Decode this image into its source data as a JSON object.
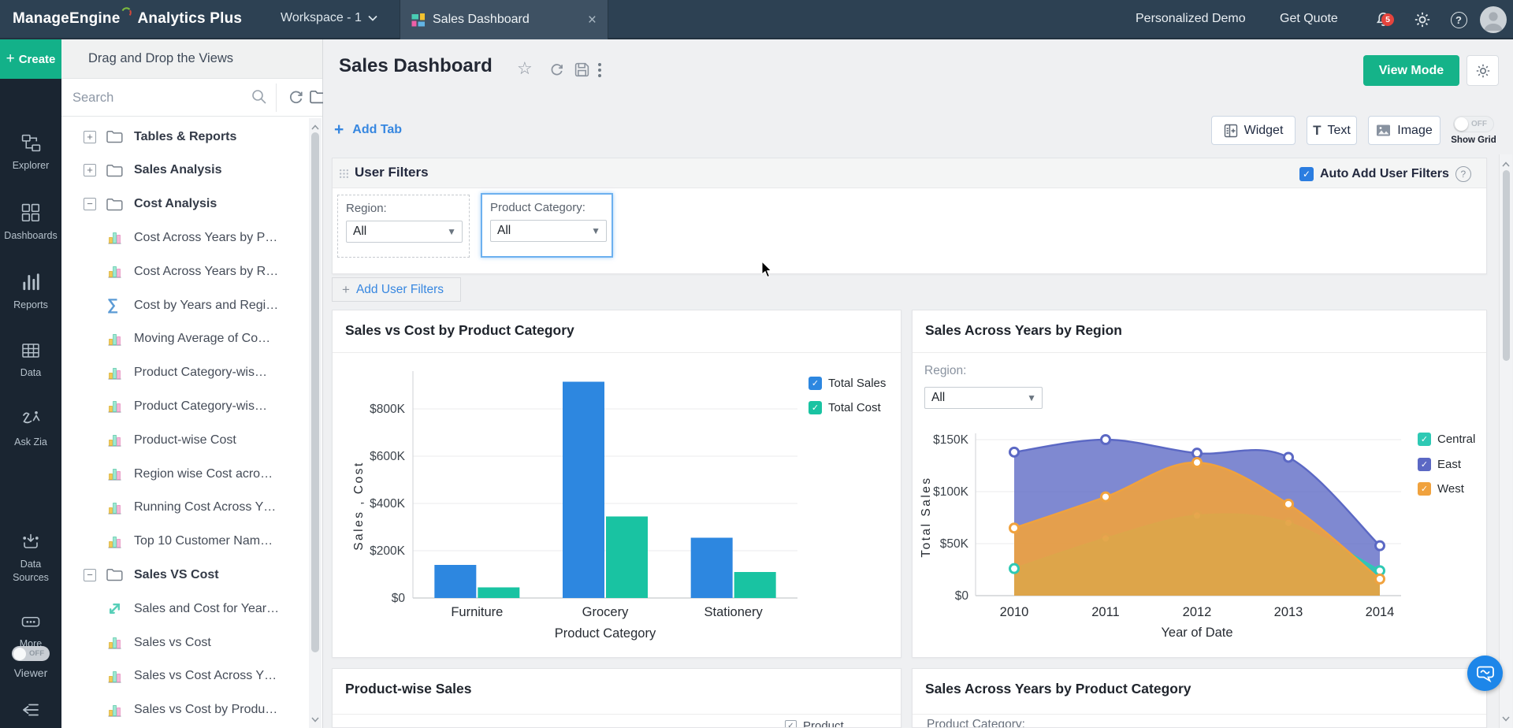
{
  "topbar": {
    "brand_bold": "ManageEngine",
    "brand_light": "Analytics Plus",
    "workspace_label": "Workspace - 1",
    "tab_title": "Sales Dashboard",
    "link_demo": "Personalized Demo",
    "link_quote": "Get Quote",
    "notification_count": "5"
  },
  "rail": {
    "create_label": "Create",
    "items": [
      {
        "label": "Explorer"
      },
      {
        "label": "Dashboards"
      },
      {
        "label": "Reports"
      },
      {
        "label": "Data"
      },
      {
        "label": "Ask Zia"
      },
      {
        "label": "Data Sources"
      },
      {
        "label": "More"
      }
    ],
    "viewer_label": "Viewer",
    "viewer_state": "OFF"
  },
  "tree": {
    "header": "Drag and Drop the Views",
    "search_placeholder": "Search",
    "nodes": [
      {
        "type": "folder",
        "state": "collapsed",
        "label": "Tables & Reports"
      },
      {
        "type": "folder",
        "state": "collapsed",
        "label": "Sales Analysis"
      },
      {
        "type": "folder",
        "state": "expanded",
        "label": "Cost Analysis"
      },
      {
        "type": "view",
        "icon": "bar-chart",
        "label": "Cost Across Years by P…"
      },
      {
        "type": "view",
        "icon": "bar-chart",
        "label": "Cost Across Years by R…"
      },
      {
        "type": "view",
        "icon": "summary",
        "label": "Cost by Years and Regi…"
      },
      {
        "type": "view",
        "icon": "bar-chart",
        "label": "Moving Average of Co…"
      },
      {
        "type": "view",
        "icon": "bar-chart",
        "label": "Product Category-wis…"
      },
      {
        "type": "view",
        "icon": "bar-chart",
        "label": "Product Category-wis…"
      },
      {
        "type": "view",
        "icon": "bar-chart",
        "label": "Product-wise Cost"
      },
      {
        "type": "view",
        "icon": "bar-chart",
        "label": "Region wise Cost acro…"
      },
      {
        "type": "view",
        "icon": "bar-chart",
        "label": "Running Cost Across Y…"
      },
      {
        "type": "view",
        "icon": "bar-chart",
        "label": "Top 10 Customer Nam…"
      },
      {
        "type": "folder",
        "state": "expanded",
        "label": "Sales VS Cost"
      },
      {
        "type": "view",
        "icon": "trend",
        "label": "Sales and Cost for Year…"
      },
      {
        "type": "view",
        "icon": "bar-chart",
        "label": "Sales vs Cost"
      },
      {
        "type": "view",
        "icon": "bar-chart",
        "label": "Sales vs Cost Across Y…"
      },
      {
        "type": "view",
        "icon": "bar-chart",
        "label": "Sales vs Cost by Produ…"
      }
    ]
  },
  "header": {
    "title": "Sales Dashboard",
    "add_tab_label": "Add Tab",
    "view_mode_label": "View Mode",
    "widget_label": "Widget",
    "text_label": "Text",
    "image_label": "Image",
    "show_grid_label": "Show Grid",
    "show_grid_state": "OFF"
  },
  "user_filters": {
    "title": "User Filters",
    "auto_add_label": "Auto Add User Filters",
    "add_filters_label": "Add User Filters",
    "filters": [
      {
        "label": "Region:",
        "value": "All",
        "highlighted": false
      },
      {
        "label": "Product Category:",
        "value": "All",
        "highlighted": true
      }
    ]
  },
  "bottom_cards": [
    {
      "title": "Product-wise Sales",
      "partial_legend": "Product"
    },
    {
      "title": "Sales Across Years by Product Category",
      "partial_filter_label": "Product Category:"
    }
  ],
  "chart_data": [
    {
      "type": "bar",
      "title": "Sales vs Cost by Product Category",
      "categories": [
        "Furniture",
        "Grocery",
        "Stationery"
      ],
      "series": [
        {
          "name": "Total Sales",
          "color": "#2d87e0",
          "values": [
            140000,
            915000,
            255000
          ]
        },
        {
          "name": "Total Cost",
          "color": "#19c3a2",
          "values": [
            45000,
            345000,
            110000
          ]
        }
      ],
      "xlabel": "Product Category",
      "ylabel": "Sales , Cost",
      "yticks": [
        0,
        200000,
        400000,
        600000,
        800000
      ],
      "ytick_labels": [
        "$0",
        "$200K",
        "$400K",
        "$600K",
        "$800K"
      ],
      "ylim": [
        0,
        950000
      ],
      "grid": true,
      "legend_position": "top-right"
    },
    {
      "type": "area",
      "title": "Sales Across Years by Region",
      "filter": {
        "label": "Region:",
        "value": "All"
      },
      "x": [
        "2010",
        "2011",
        "2012",
        "2013",
        "2014"
      ],
      "series": [
        {
          "name": "East",
          "color": "#5b68c4",
          "values": [
            138000,
            150000,
            137000,
            133000,
            48000
          ]
        },
        {
          "name": "Central",
          "color": "#2ec9b4",
          "values": [
            26000,
            55000,
            77000,
            70000,
            24000
          ]
        },
        {
          "name": "West",
          "color": "#f0a23e",
          "values": [
            65000,
            95000,
            128000,
            88000,
            16000
          ]
        }
      ],
      "legend_order": [
        "Central",
        "East",
        "West"
      ],
      "xlabel": "Year of Date",
      "ylabel": "Total Sales",
      "yticks": [
        0,
        50000,
        100000,
        150000
      ],
      "ytick_labels": [
        "$0",
        "$50K",
        "$100K",
        "$150K"
      ],
      "ylim": [
        0,
        165000
      ],
      "grid": true,
      "legend_position": "right"
    }
  ]
}
